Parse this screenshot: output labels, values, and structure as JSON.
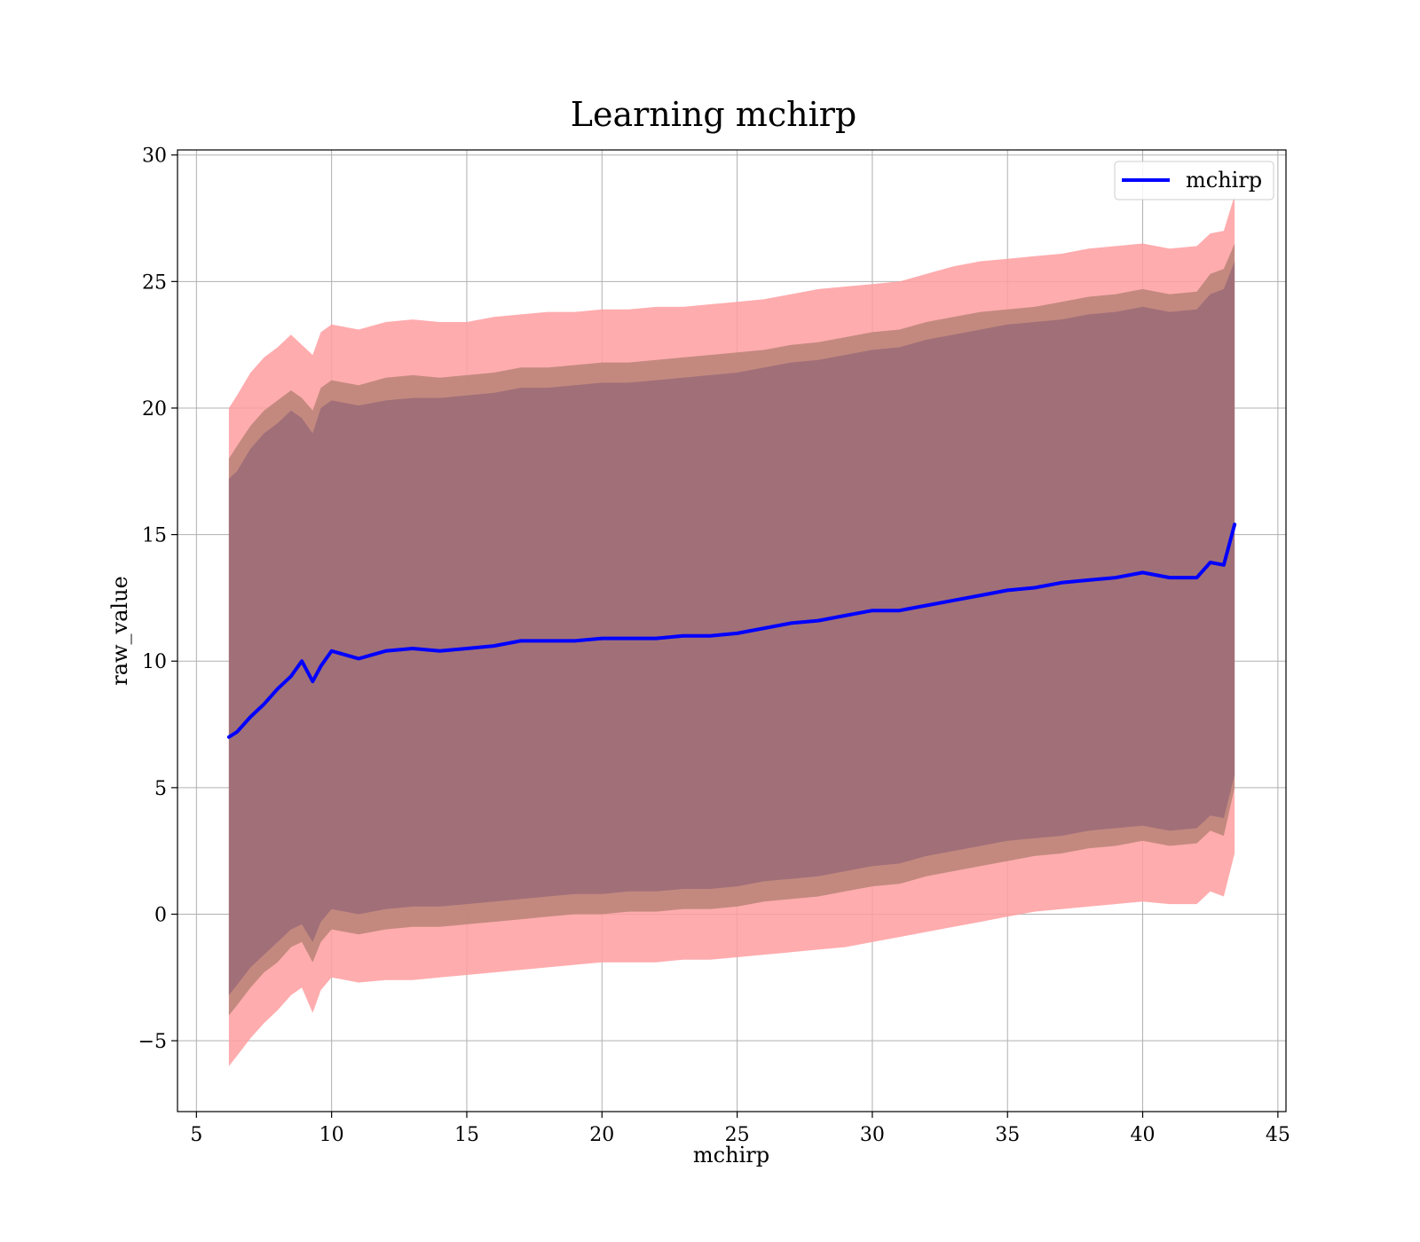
{
  "chart_data": {
    "type": "line",
    "title": "Learning mchirp",
    "xlabel": "mchirp",
    "ylabel": "raw_value",
    "xlim": [
      4.3,
      45.3
    ],
    "ylim": [
      -7.8,
      30.2
    ],
    "xticks": [
      5,
      10,
      15,
      20,
      25,
      30,
      35,
      40,
      45
    ],
    "xtick_labels": [
      "5",
      "10",
      "15",
      "20",
      "25",
      "30",
      "35",
      "40",
      "45"
    ],
    "yticks": [
      -5,
      0,
      5,
      10,
      15,
      20,
      25,
      30
    ],
    "ytick_labels": [
      "−5",
      "0",
      "5",
      "10",
      "15",
      "20",
      "25",
      "30"
    ],
    "grid": true,
    "legend": {
      "position": "top-right",
      "entries": [
        "mchirp"
      ]
    },
    "colors": {
      "line": "#0000ff",
      "band_outer": "#ff9ea0",
      "band_middle": "#bd857a",
      "band_inner": "#a16f78",
      "grid": "#b0b0b0"
    },
    "x": [
      6.2,
      6.5,
      7.0,
      7.5,
      8.0,
      8.5,
      8.9,
      9.3,
      9.6,
      10.0,
      11.0,
      12.0,
      13.0,
      14.0,
      15.0,
      16.0,
      17.0,
      18.0,
      19.0,
      20.0,
      21.0,
      22.0,
      23.0,
      24.0,
      25.0,
      26.0,
      27.0,
      28.0,
      29.0,
      30.0,
      31.0,
      32.0,
      33.0,
      34.0,
      35.0,
      36.0,
      37.0,
      38.0,
      39.0,
      40.0,
      41.0,
      42.0,
      42.5,
      43.0,
      43.4
    ],
    "series": [
      {
        "name": "mchirp",
        "values": [
          7.0,
          7.2,
          7.8,
          8.3,
          8.9,
          9.4,
          10.0,
          9.2,
          9.8,
          10.4,
          10.1,
          10.4,
          10.5,
          10.4,
          10.5,
          10.6,
          10.8,
          10.8,
          10.8,
          10.9,
          10.9,
          10.9,
          11.0,
          11.0,
          11.1,
          11.3,
          11.5,
          11.6,
          11.8,
          12.0,
          12.0,
          12.2,
          12.4,
          12.6,
          12.8,
          12.9,
          13.1,
          13.2,
          13.3,
          13.5,
          13.3,
          13.3,
          13.9,
          13.8,
          15.4
        ]
      }
    ],
    "bands": [
      {
        "upper": [
          20.0,
          20.5,
          21.4,
          22.0,
          22.4,
          22.9,
          22.5,
          22.1,
          23.0,
          23.3,
          23.1,
          23.4,
          23.5,
          23.4,
          23.4,
          23.6,
          23.7,
          23.8,
          23.8,
          23.9,
          23.9,
          24.0,
          24.0,
          24.1,
          24.2,
          24.3,
          24.5,
          24.7,
          24.8,
          24.9,
          25.0,
          25.3,
          25.6,
          25.8,
          25.9,
          26.0,
          26.1,
          26.3,
          26.4,
          26.5,
          26.3,
          26.4,
          26.9,
          27.0,
          28.4
        ],
        "lower": [
          -6.0,
          -5.6,
          -4.9,
          -4.3,
          -3.8,
          -3.2,
          -2.9,
          -3.9,
          -3.0,
          -2.5,
          -2.7,
          -2.6,
          -2.6,
          -2.5,
          -2.4,
          -2.3,
          -2.2,
          -2.1,
          -2.0,
          -1.9,
          -1.9,
          -1.9,
          -1.8,
          -1.8,
          -1.7,
          -1.6,
          -1.5,
          -1.4,
          -1.3,
          -1.1,
          -0.9,
          -0.7,
          -0.5,
          -0.3,
          -0.1,
          0.1,
          0.2,
          0.3,
          0.4,
          0.5,
          0.4,
          0.4,
          0.9,
          0.7,
          2.4
        ]
      },
      {
        "upper": [
          18.0,
          18.5,
          19.3,
          19.9,
          20.3,
          20.7,
          20.4,
          19.9,
          20.8,
          21.1,
          20.9,
          21.2,
          21.3,
          21.2,
          21.3,
          21.4,
          21.6,
          21.6,
          21.7,
          21.8,
          21.8,
          21.9,
          22.0,
          22.1,
          22.2,
          22.3,
          22.5,
          22.6,
          22.8,
          23.0,
          23.1,
          23.4,
          23.6,
          23.8,
          23.9,
          24.0,
          24.2,
          24.4,
          24.5,
          24.7,
          24.5,
          24.6,
          25.3,
          25.5,
          26.5
        ],
        "lower": [
          -4.0,
          -3.6,
          -2.9,
          -2.3,
          -1.9,
          -1.3,
          -1.1,
          -1.9,
          -1.1,
          -0.6,
          -0.8,
          -0.6,
          -0.5,
          -0.5,
          -0.4,
          -0.3,
          -0.2,
          -0.1,
          0.0,
          0.0,
          0.1,
          0.1,
          0.2,
          0.2,
          0.3,
          0.5,
          0.6,
          0.7,
          0.9,
          1.1,
          1.2,
          1.5,
          1.7,
          1.9,
          2.1,
          2.3,
          2.4,
          2.6,
          2.7,
          2.9,
          2.7,
          2.8,
          3.3,
          3.1,
          5.0
        ]
      },
      {
        "upper": [
          17.2,
          17.5,
          18.4,
          19.0,
          19.4,
          19.9,
          19.6,
          19.0,
          20.0,
          20.3,
          20.1,
          20.3,
          20.4,
          20.4,
          20.5,
          20.6,
          20.8,
          20.8,
          20.9,
          21.0,
          21.0,
          21.1,
          21.2,
          21.3,
          21.4,
          21.6,
          21.8,
          21.9,
          22.1,
          22.3,
          22.4,
          22.7,
          22.9,
          23.1,
          23.3,
          23.4,
          23.5,
          23.7,
          23.8,
          24.0,
          23.8,
          23.9,
          24.5,
          24.7,
          25.8
        ],
        "lower": [
          -3.2,
          -2.8,
          -2.1,
          -1.6,
          -1.1,
          -0.6,
          -0.4,
          -1.1,
          -0.3,
          0.2,
          0.0,
          0.2,
          0.3,
          0.3,
          0.4,
          0.5,
          0.6,
          0.7,
          0.8,
          0.8,
          0.9,
          0.9,
          1.0,
          1.0,
          1.1,
          1.3,
          1.4,
          1.5,
          1.7,
          1.9,
          2.0,
          2.3,
          2.5,
          2.7,
          2.9,
          3.0,
          3.1,
          3.3,
          3.4,
          3.5,
          3.3,
          3.4,
          3.9,
          3.8,
          5.5
        ]
      }
    ]
  }
}
